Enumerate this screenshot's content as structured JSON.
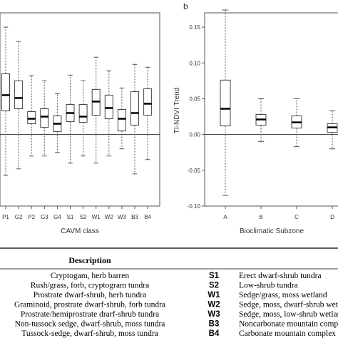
{
  "chart_data": [
    {
      "type": "boxplot",
      "xlabel": "CAVM class",
      "ylabel": "",
      "ylim": [
        -0.1,
        0.17
      ],
      "grid": false,
      "reference_line": 0.0,
      "categories": [
        "P1",
        "G2",
        "P2",
        "G3",
        "G4",
        "S1",
        "S2",
        "W1",
        "W2",
        "W3",
        "B3",
        "B4"
      ],
      "boxes": [
        {
          "whisker_low": -0.057,
          "q1": 0.033,
          "median": 0.055,
          "q3": 0.085,
          "whisker_high": 0.15
        },
        {
          "whisker_low": -0.048,
          "q1": 0.036,
          "median": 0.051,
          "q3": 0.075,
          "whisker_high": 0.13
        },
        {
          "whisker_low": -0.03,
          "q1": 0.015,
          "median": 0.022,
          "q3": 0.032,
          "whisker_high": 0.082
        },
        {
          "whisker_low": -0.03,
          "q1": 0.01,
          "median": 0.025,
          "q3": 0.036,
          "whisker_high": 0.075
        },
        {
          "whisker_low": -0.025,
          "q1": 0.004,
          "median": 0.015,
          "q3": 0.026,
          "whisker_high": 0.057
        },
        {
          "whisker_low": -0.04,
          "q1": 0.018,
          "median": 0.03,
          "q3": 0.042,
          "whisker_high": 0.083
        },
        {
          "whisker_low": -0.03,
          "q1": 0.017,
          "median": 0.025,
          "q3": 0.042,
          "whisker_high": 0.075
        },
        {
          "whisker_low": -0.04,
          "q1": 0.027,
          "median": 0.046,
          "q3": 0.063,
          "whisker_high": 0.108
        },
        {
          "whisker_low": -0.03,
          "q1": 0.022,
          "median": 0.037,
          "q3": 0.055,
          "whisker_high": 0.089
        },
        {
          "whisker_low": -0.02,
          "q1": 0.005,
          "median": 0.022,
          "q3": 0.035,
          "whisker_high": 0.065
        },
        {
          "whisker_low": -0.055,
          "q1": 0.013,
          "median": 0.03,
          "q3": 0.06,
          "whisker_high": 0.098
        },
        {
          "whisker_low": -0.035,
          "q1": 0.027,
          "median": 0.043,
          "q3": 0.064,
          "whisker_high": 0.094
        }
      ]
    },
    {
      "type": "boxplot",
      "panel_label": "b",
      "xlabel": "Bioclimatic Subzone",
      "ylabel": "TI-NDVI Trend",
      "ylim": [
        -0.1,
        0.17
      ],
      "yticks": [
        "0.15",
        "0.10",
        "0.05",
        "0.00",
        "-0.05",
        "-0.10"
      ],
      "ytick_values": [
        0.15,
        0.1,
        0.05,
        0.0,
        -0.05,
        -0.1
      ],
      "grid": false,
      "reference_line": 0.0,
      "categories": [
        "A",
        "B",
        "C",
        "D"
      ],
      "boxes": [
        {
          "whisker_low": -0.085,
          "q1": 0.012,
          "median": 0.036,
          "q3": 0.076,
          "whisker_high": 0.174
        },
        {
          "whisker_low": -0.01,
          "q1": 0.013,
          "median": 0.021,
          "q3": 0.028,
          "whisker_high": 0.05
        },
        {
          "whisker_low": -0.017,
          "q1": 0.009,
          "median": 0.017,
          "q3": 0.026,
          "whisker_high": 0.05
        },
        {
          "whisker_low": -0.02,
          "q1": 0.003,
          "median": 0.01,
          "q3": 0.015,
          "whisker_high": 0.033
        }
      ]
    }
  ],
  "table": {
    "header": "Description",
    "left_rows": [
      "Cryptogam, herb barren",
      "Rush/grass, forb, cryptogram tundra",
      "Prostrate dwarf-shrub, herb tundra",
      "Graminoid, prostrate dwarf-shrub, forb tundra",
      "Prostrate/hemiprostrate drarf-shrub tundra",
      "Non-tussock sedge, dwarf-shrub, moss tundra",
      "Tussock-sedge, dwarf-shrub, moss tundra"
    ],
    "right_rows": [
      {
        "code": "S1",
        "text": "Erect dwarf-shrub tundra"
      },
      {
        "code": "S2",
        "text": "Low-shrub tundra"
      },
      {
        "code": "W1",
        "text": "Sedge/grass, moss wetland"
      },
      {
        "code": "W2",
        "text": "Sedge, moss, dwarf-shrub wetland"
      },
      {
        "code": "W3",
        "text": "Sedge, moss, low-shrub wetland"
      },
      {
        "code": "B3",
        "text": "Noncarbonate mountain complex"
      },
      {
        "code": "B4",
        "text": "Carbonate mountain complex"
      }
    ]
  }
}
